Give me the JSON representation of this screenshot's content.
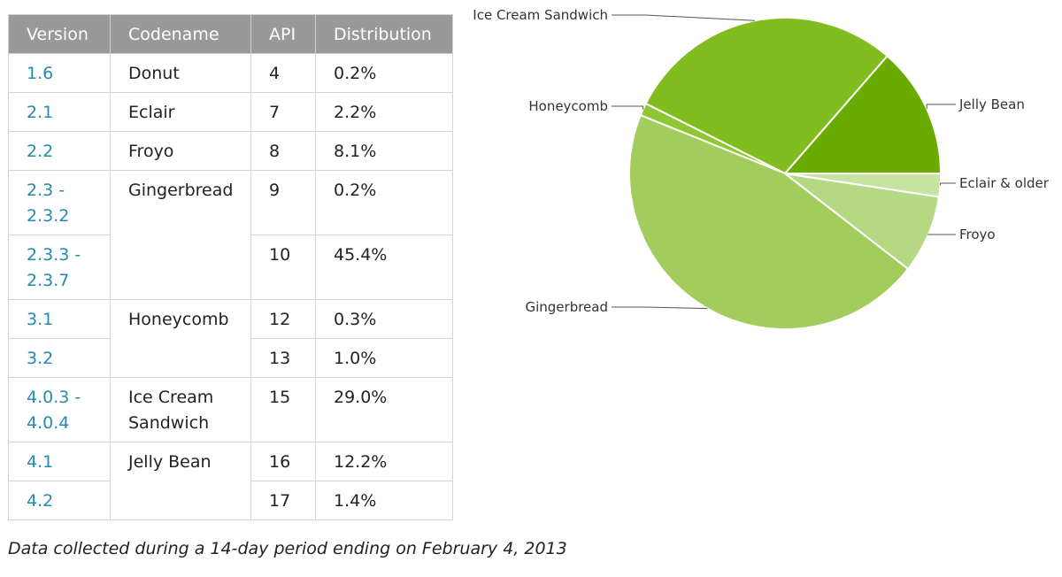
{
  "table": {
    "headers": [
      "Version",
      "Codename",
      "API",
      "Distribution"
    ],
    "rows": [
      {
        "version": "1.6",
        "codename": "Donut",
        "api": "4",
        "distribution": "0.2%"
      },
      {
        "version": "2.1",
        "codename": "Eclair",
        "api": "7",
        "distribution": "2.2%"
      },
      {
        "version": "2.2",
        "codename": "Froyo",
        "api": "8",
        "distribution": "8.1%"
      },
      {
        "version": "2.3 - 2.3.2",
        "codename": "Gingerbread",
        "api": "9",
        "distribution": "0.2%"
      },
      {
        "version": "2.3.3 - 2.3.7",
        "codename": "",
        "api": "10",
        "distribution": "45.4%"
      },
      {
        "version": "3.1",
        "codename": "Honeycomb",
        "api": "12",
        "distribution": "0.3%"
      },
      {
        "version": "3.2",
        "codename": "",
        "api": "13",
        "distribution": "1.0%"
      },
      {
        "version": "4.0.3 - 4.0.4",
        "codename": "Ice Cream Sandwich",
        "api": "15",
        "distribution": "29.0%"
      },
      {
        "version": "4.1",
        "codename": "Jelly Bean",
        "api": "16",
        "distribution": "12.2%"
      },
      {
        "version": "4.2",
        "codename": "",
        "api": "17",
        "distribution": "1.4%"
      }
    ]
  },
  "caption": "Data collected during a 14-day period ending on February 4, 2013",
  "chart_data": {
    "type": "pie",
    "slices": [
      {
        "label": "Jelly Bean",
        "value": 13.6,
        "color": "#6aab00"
      },
      {
        "label": "Ice Cream Sandwich",
        "value": 29.0,
        "color": "#81bd1f"
      },
      {
        "label": "Honeycomb",
        "value": 1.3,
        "color": "#8fc633"
      },
      {
        "label": "Gingerbread",
        "value": 45.6,
        "color": "#a2cc5c"
      },
      {
        "label": "Froyo",
        "value": 8.1,
        "color": "#b5d882"
      },
      {
        "label": "Eclair & older",
        "value": 2.4,
        "color": "#c8e2a2"
      }
    ],
    "legend": "callout labels"
  }
}
